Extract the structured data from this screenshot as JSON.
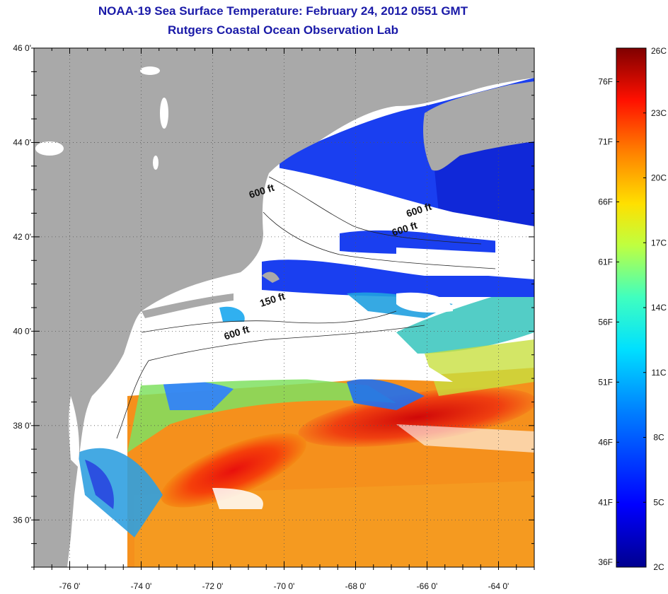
{
  "title": "NOAA-19 Sea Surface Temperature:  February 24, 2012 0551 GMT",
  "subtitle": "Rutgers Coastal Ocean Observation Lab",
  "map": {
    "lat_labels": [
      "46 0'",
      "44 0'",
      "42 0'",
      "40 0'",
      "38 0'",
      "36 0'"
    ],
    "lon_labels": [
      "-76 0'",
      "-74 0'",
      "-72 0'",
      "-70 0'",
      "-68 0'",
      "-66 0'",
      "-64 0'"
    ],
    "lat_values": [
      46,
      44,
      42,
      40,
      38,
      36
    ],
    "lon_values": [
      -76,
      -74,
      -72,
      -70,
      -68,
      -66,
      -64
    ],
    "lat_range": [
      35,
      46
    ],
    "lon_range": [
      -77,
      -63
    ],
    "contour_labels": [
      {
        "text": "600 ft",
        "lon": -70.6,
        "lat": 42.9
      },
      {
        "text": "600 ft",
        "lon": -66.2,
        "lat": 42.5
      },
      {
        "text": "600 ft",
        "lon": -66.6,
        "lat": 42.1
      },
      {
        "text": "150 ft",
        "lon": -70.3,
        "lat": 40.6
      },
      {
        "text": "600 ft",
        "lon": -71.3,
        "lat": 39.9
      }
    ],
    "colors": {
      "land": "#a9a9a9",
      "cloud": "#ffffff"
    }
  },
  "colorbar": {
    "celsius_labels": [
      "26C",
      "23C",
      "20C",
      "17C",
      "14C",
      "11C",
      "8C",
      "5C",
      "2C"
    ],
    "celsius_values": [
      26,
      23,
      20,
      17,
      14,
      11,
      8,
      5,
      2
    ],
    "fahrenheit_labels": [
      "76F",
      "71F",
      "66F",
      "61F",
      "56F",
      "51F",
      "46F",
      "41F",
      "36F"
    ],
    "fahrenheit_values": [
      76,
      71,
      66,
      61,
      56,
      51,
      46,
      41,
      36
    ],
    "range_c": [
      2,
      26
    ]
  }
}
